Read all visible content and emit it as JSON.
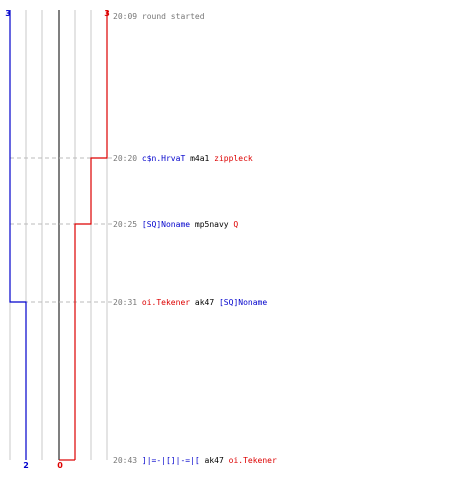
{
  "colors": {
    "team_blue": "#0000cc",
    "team_red": "#dd0000",
    "neutral": "#000000",
    "time_gray": "#777777",
    "grid_light": "#c8c8c8",
    "grid_dark": "#555555",
    "dash": "#bbbbbb"
  },
  "scores": {
    "blue_start": "3",
    "red_start": "3",
    "blue_end": "2",
    "red_end": "0"
  },
  "events": [
    {
      "time": "20:09",
      "parts": [
        {
          "text": "round started",
          "role": "neutral_gray"
        }
      ]
    },
    {
      "time": "20:20",
      "parts": [
        {
          "text": "c$n.HrvaT",
          "role": "blue"
        },
        {
          "text": "m4a1",
          "role": "neutral"
        },
        {
          "text": "zippleck",
          "role": "red"
        }
      ]
    },
    {
      "time": "20:25",
      "parts": [
        {
          "text": "[SQ]Noname",
          "role": "blue"
        },
        {
          "text": "mp5navy",
          "role": "neutral"
        },
        {
          "text": "Q",
          "role": "red"
        }
      ]
    },
    {
      "time": "20:31",
      "parts": [
        {
          "text": "oi.Tekener",
          "role": "red"
        },
        {
          "text": "ak47",
          "role": "neutral"
        },
        {
          "text": "[SQ]Noname",
          "role": "blue"
        }
      ]
    },
    {
      "time": "20:43",
      "parts": [
        {
          "text": "]|=-|[]|-=|[",
          "role": "blue"
        },
        {
          "text": "ak47",
          "role": "neutral"
        },
        {
          "text": "oi.Tekener",
          "role": "red"
        }
      ]
    }
  ]
}
